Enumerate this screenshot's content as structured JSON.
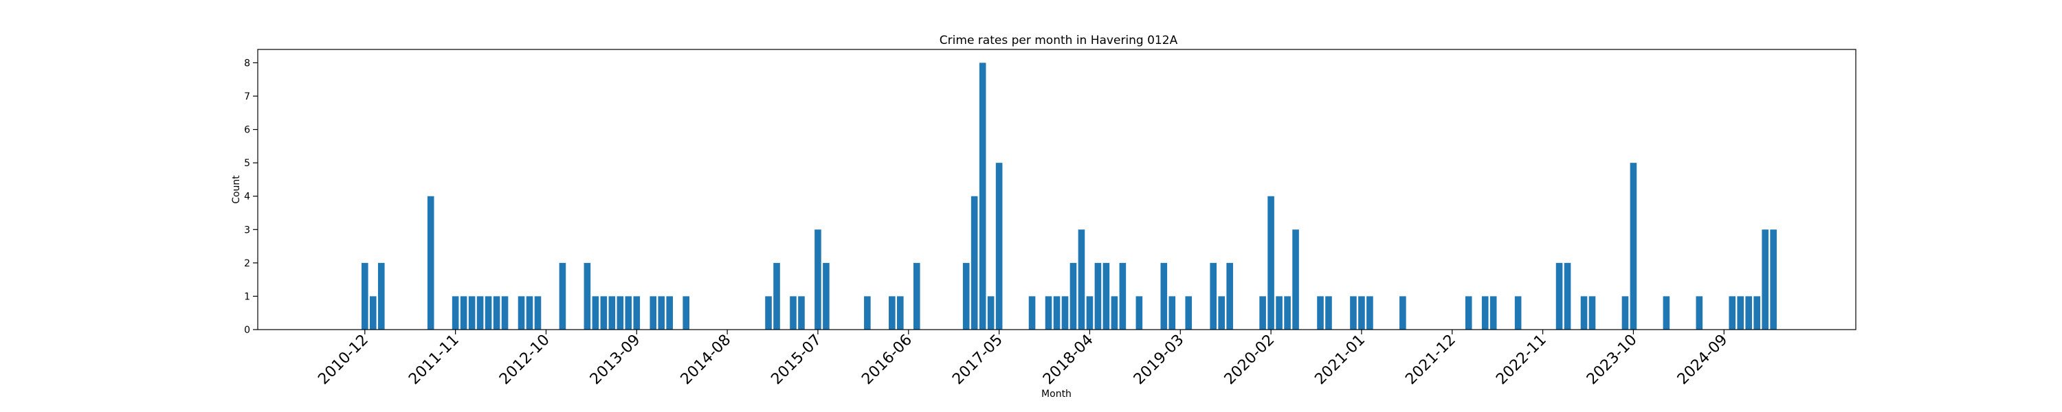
{
  "chart_data": {
    "type": "bar",
    "title": "Crime rates per month in Havering 012A",
    "xlabel": "Month",
    "ylabel": "Count",
    "ylim": [
      0,
      8.4
    ],
    "yticks": [
      0,
      1,
      2,
      3,
      4,
      5,
      6,
      7,
      8
    ],
    "xlim": [
      "2009-11",
      "2026-01"
    ],
    "xtick_labels": [
      "2010-12",
      "2011-11",
      "2012-10",
      "2013-09",
      "2014-08",
      "2015-07",
      "2016-06",
      "2017-05",
      "2018-04",
      "2019-03",
      "2020-02",
      "2021-01",
      "2021-12",
      "2022-11",
      "2023-10",
      "2024-09"
    ],
    "grid": false,
    "bar_color": "#1f77b4",
    "months": [
      "2010-12",
      "2011-01",
      "2011-02",
      "2011-08",
      "2011-11",
      "2011-12",
      "2012-01",
      "2012-02",
      "2012-03",
      "2012-04",
      "2012-05",
      "2012-07",
      "2012-08",
      "2012-09",
      "2012-12",
      "2013-03",
      "2013-04",
      "2013-05",
      "2013-06",
      "2013-07",
      "2013-08",
      "2013-09",
      "2013-11",
      "2013-12",
      "2014-01",
      "2014-03",
      "2015-01",
      "2015-02",
      "2015-04",
      "2015-05",
      "2015-07",
      "2015-08",
      "2016-01",
      "2016-04",
      "2016-05",
      "2016-07",
      "2017-01",
      "2017-02",
      "2017-03",
      "2017-04",
      "2017-05",
      "2017-09",
      "2017-11",
      "2017-12",
      "2018-01",
      "2018-02",
      "2018-03",
      "2018-04",
      "2018-05",
      "2018-06",
      "2018-07",
      "2018-08",
      "2018-10",
      "2019-01",
      "2019-02",
      "2019-04",
      "2019-07",
      "2019-08",
      "2019-09",
      "2020-01",
      "2020-02",
      "2020-03",
      "2020-04",
      "2020-05",
      "2020-08",
      "2020-09",
      "2020-12",
      "2021-01",
      "2021-02",
      "2021-06",
      "2022-02",
      "2022-04",
      "2022-05",
      "2022-08",
      "2023-01",
      "2023-02",
      "2023-04",
      "2023-05",
      "2023-09",
      "2023-10",
      "2024-02",
      "2024-06",
      "2024-10",
      "2024-11",
      "2024-12",
      "2025-01",
      "2025-02",
      "2025-03"
    ],
    "values": [
      2,
      1,
      2,
      4,
      1,
      1,
      1,
      1,
      1,
      1,
      1,
      1,
      1,
      1,
      2,
      2,
      1,
      1,
      1,
      1,
      1,
      1,
      1,
      1,
      1,
      1,
      1,
      2,
      1,
      1,
      3,
      2,
      1,
      1,
      1,
      2,
      2,
      4,
      8,
      1,
      5,
      1,
      1,
      1,
      1,
      2,
      3,
      1,
      2,
      2,
      1,
      2,
      1,
      2,
      1,
      1,
      2,
      1,
      2,
      1,
      4,
      1,
      1,
      3,
      1,
      1,
      1,
      1,
      1,
      1,
      1,
      1,
      1,
      1,
      2,
      2,
      1,
      1,
      1,
      5,
      1,
      1,
      1,
      1,
      1,
      1,
      3,
      3
    ]
  }
}
